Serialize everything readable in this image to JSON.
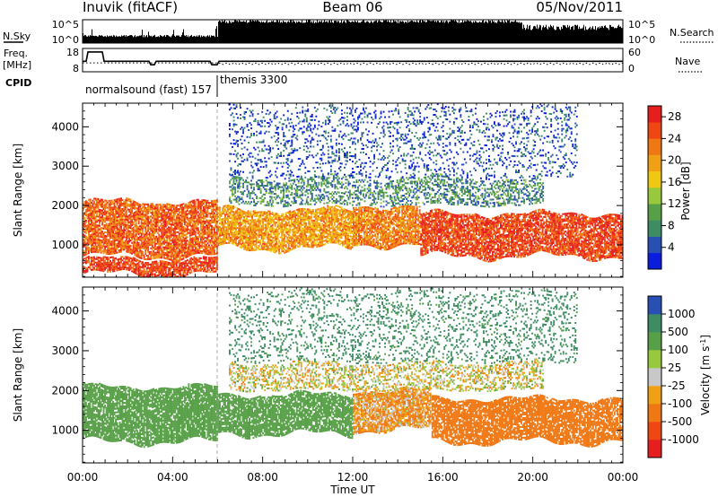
{
  "header": {
    "station": "Inuvik (fitACF)",
    "beam": "Beam 06",
    "date": "05/Nov/2011"
  },
  "status_panels": {
    "noise": {
      "left_label": "N.Sky",
      "right_label": "N.Search",
      "left_ticks": [
        "10^5",
        "10^0"
      ],
      "right_ticks": [
        "10^5",
        "10^0"
      ]
    },
    "freq": {
      "left_label_1": "Freq.",
      "left_label_2": "[MHz]",
      "right_label": "Nave",
      "left_ticks": [
        "18",
        "8"
      ],
      "right_ticks": [
        "60",
        "0"
      ]
    },
    "cpid": {
      "label": "CPID",
      "programs": [
        {
          "name": "normalsound (fast) 157",
          "start_hour": 0
        },
        {
          "name": "themis 3300",
          "start_hour": 6
        }
      ]
    }
  },
  "colors": {
    "power": [
      "#0a1cdc",
      "#2850b4",
      "#3c8c64",
      "#58a048",
      "#98c83c",
      "#f0c814",
      "#f0a014",
      "#f07814",
      "#f04614",
      "#e61e1e"
    ],
    "velocity": [
      "#2850b4",
      "#3c8c64",
      "#58a048",
      "#98c83c",
      "#c8c8c8",
      "#f0a014",
      "#f07814",
      "#f04614",
      "#e61e1e"
    ]
  },
  "chart_data": [
    {
      "type": "heatmap",
      "title": "",
      "xlabel": "Time UT",
      "ylabel": "Slant Range [km]",
      "x_ticks": [
        "00:00",
        "04:00",
        "08:00",
        "12:00",
        "16:00",
        "20:00",
        "00:00"
      ],
      "xlim": [
        0,
        24
      ],
      "ylim": [
        180,
        4600
      ],
      "y_ticks": [
        "1000",
        "2000",
        "3000",
        "4000"
      ],
      "colorbar": {
        "label": "Power [dB]",
        "ticks": [
          "4",
          "8",
          "12",
          "16",
          "20",
          "24",
          "28"
        ],
        "range": [
          0,
          30
        ]
      },
      "regions": [
        {
          "t_start": 0.0,
          "t_end": 6.0,
          "r_low": 700,
          "r_high": 2100,
          "value": 24
        },
        {
          "t_start": 0.0,
          "t_end": 6.0,
          "r_low": 250,
          "r_high": 650,
          "value": 26
        },
        {
          "t_start": 6.0,
          "t_end": 12.0,
          "r_low": 900,
          "r_high": 1900,
          "value": 20
        },
        {
          "t_start": 12.0,
          "t_end": 15.0,
          "r_low": 1000,
          "r_high": 2000,
          "value": 22
        },
        {
          "t_start": 15.0,
          "t_end": 24.0,
          "r_low": 700,
          "r_high": 1800,
          "value": 26
        },
        {
          "t_start": 6.5,
          "t_end": 20.5,
          "r_low": 2000,
          "r_high": 2700,
          "value": 8
        },
        {
          "t_start": 6.5,
          "t_end": 22.0,
          "r_low": 2700,
          "r_high": 4500,
          "value": 4
        }
      ]
    },
    {
      "type": "heatmap",
      "title": "",
      "xlabel": "Time UT",
      "ylabel": "Slant Range [km]",
      "x_ticks": [
        "00:00",
        "04:00",
        "08:00",
        "12:00",
        "16:00",
        "20:00",
        "00:00"
      ],
      "xlim": [
        0,
        24
      ],
      "ylim": [
        180,
        4600
      ],
      "y_ticks": [
        "1000",
        "2000",
        "3000",
        "4000"
      ],
      "colorbar": {
        "label": "Velocity [m s^-1]",
        "ticks": [
          "1000",
          "500",
          "100",
          "25",
          "-25",
          "-100",
          "-500",
          "-1000"
        ],
        "range": [
          -1200,
          1200
        ]
      },
      "regions": [
        {
          "t_start": 0.0,
          "t_end": 6.0,
          "r_low": 700,
          "r_high": 2100,
          "value": 300
        },
        {
          "t_start": 6.0,
          "t_end": 12.0,
          "r_low": 900,
          "r_high": 1900,
          "value": 300
        },
        {
          "t_start": 12.0,
          "t_end": 15.5,
          "r_low": 1000,
          "r_high": 2000,
          "value": -100
        },
        {
          "t_start": 15.5,
          "t_end": 24.0,
          "r_low": 700,
          "r_high": 1800,
          "value": -300
        },
        {
          "t_start": 6.5,
          "t_end": 20.5,
          "r_low": 2000,
          "r_high": 2700,
          "value": 0
        },
        {
          "t_start": 6.5,
          "t_end": 22.0,
          "r_low": 2700,
          "r_high": 4500,
          "value": 600
        }
      ]
    }
  ]
}
